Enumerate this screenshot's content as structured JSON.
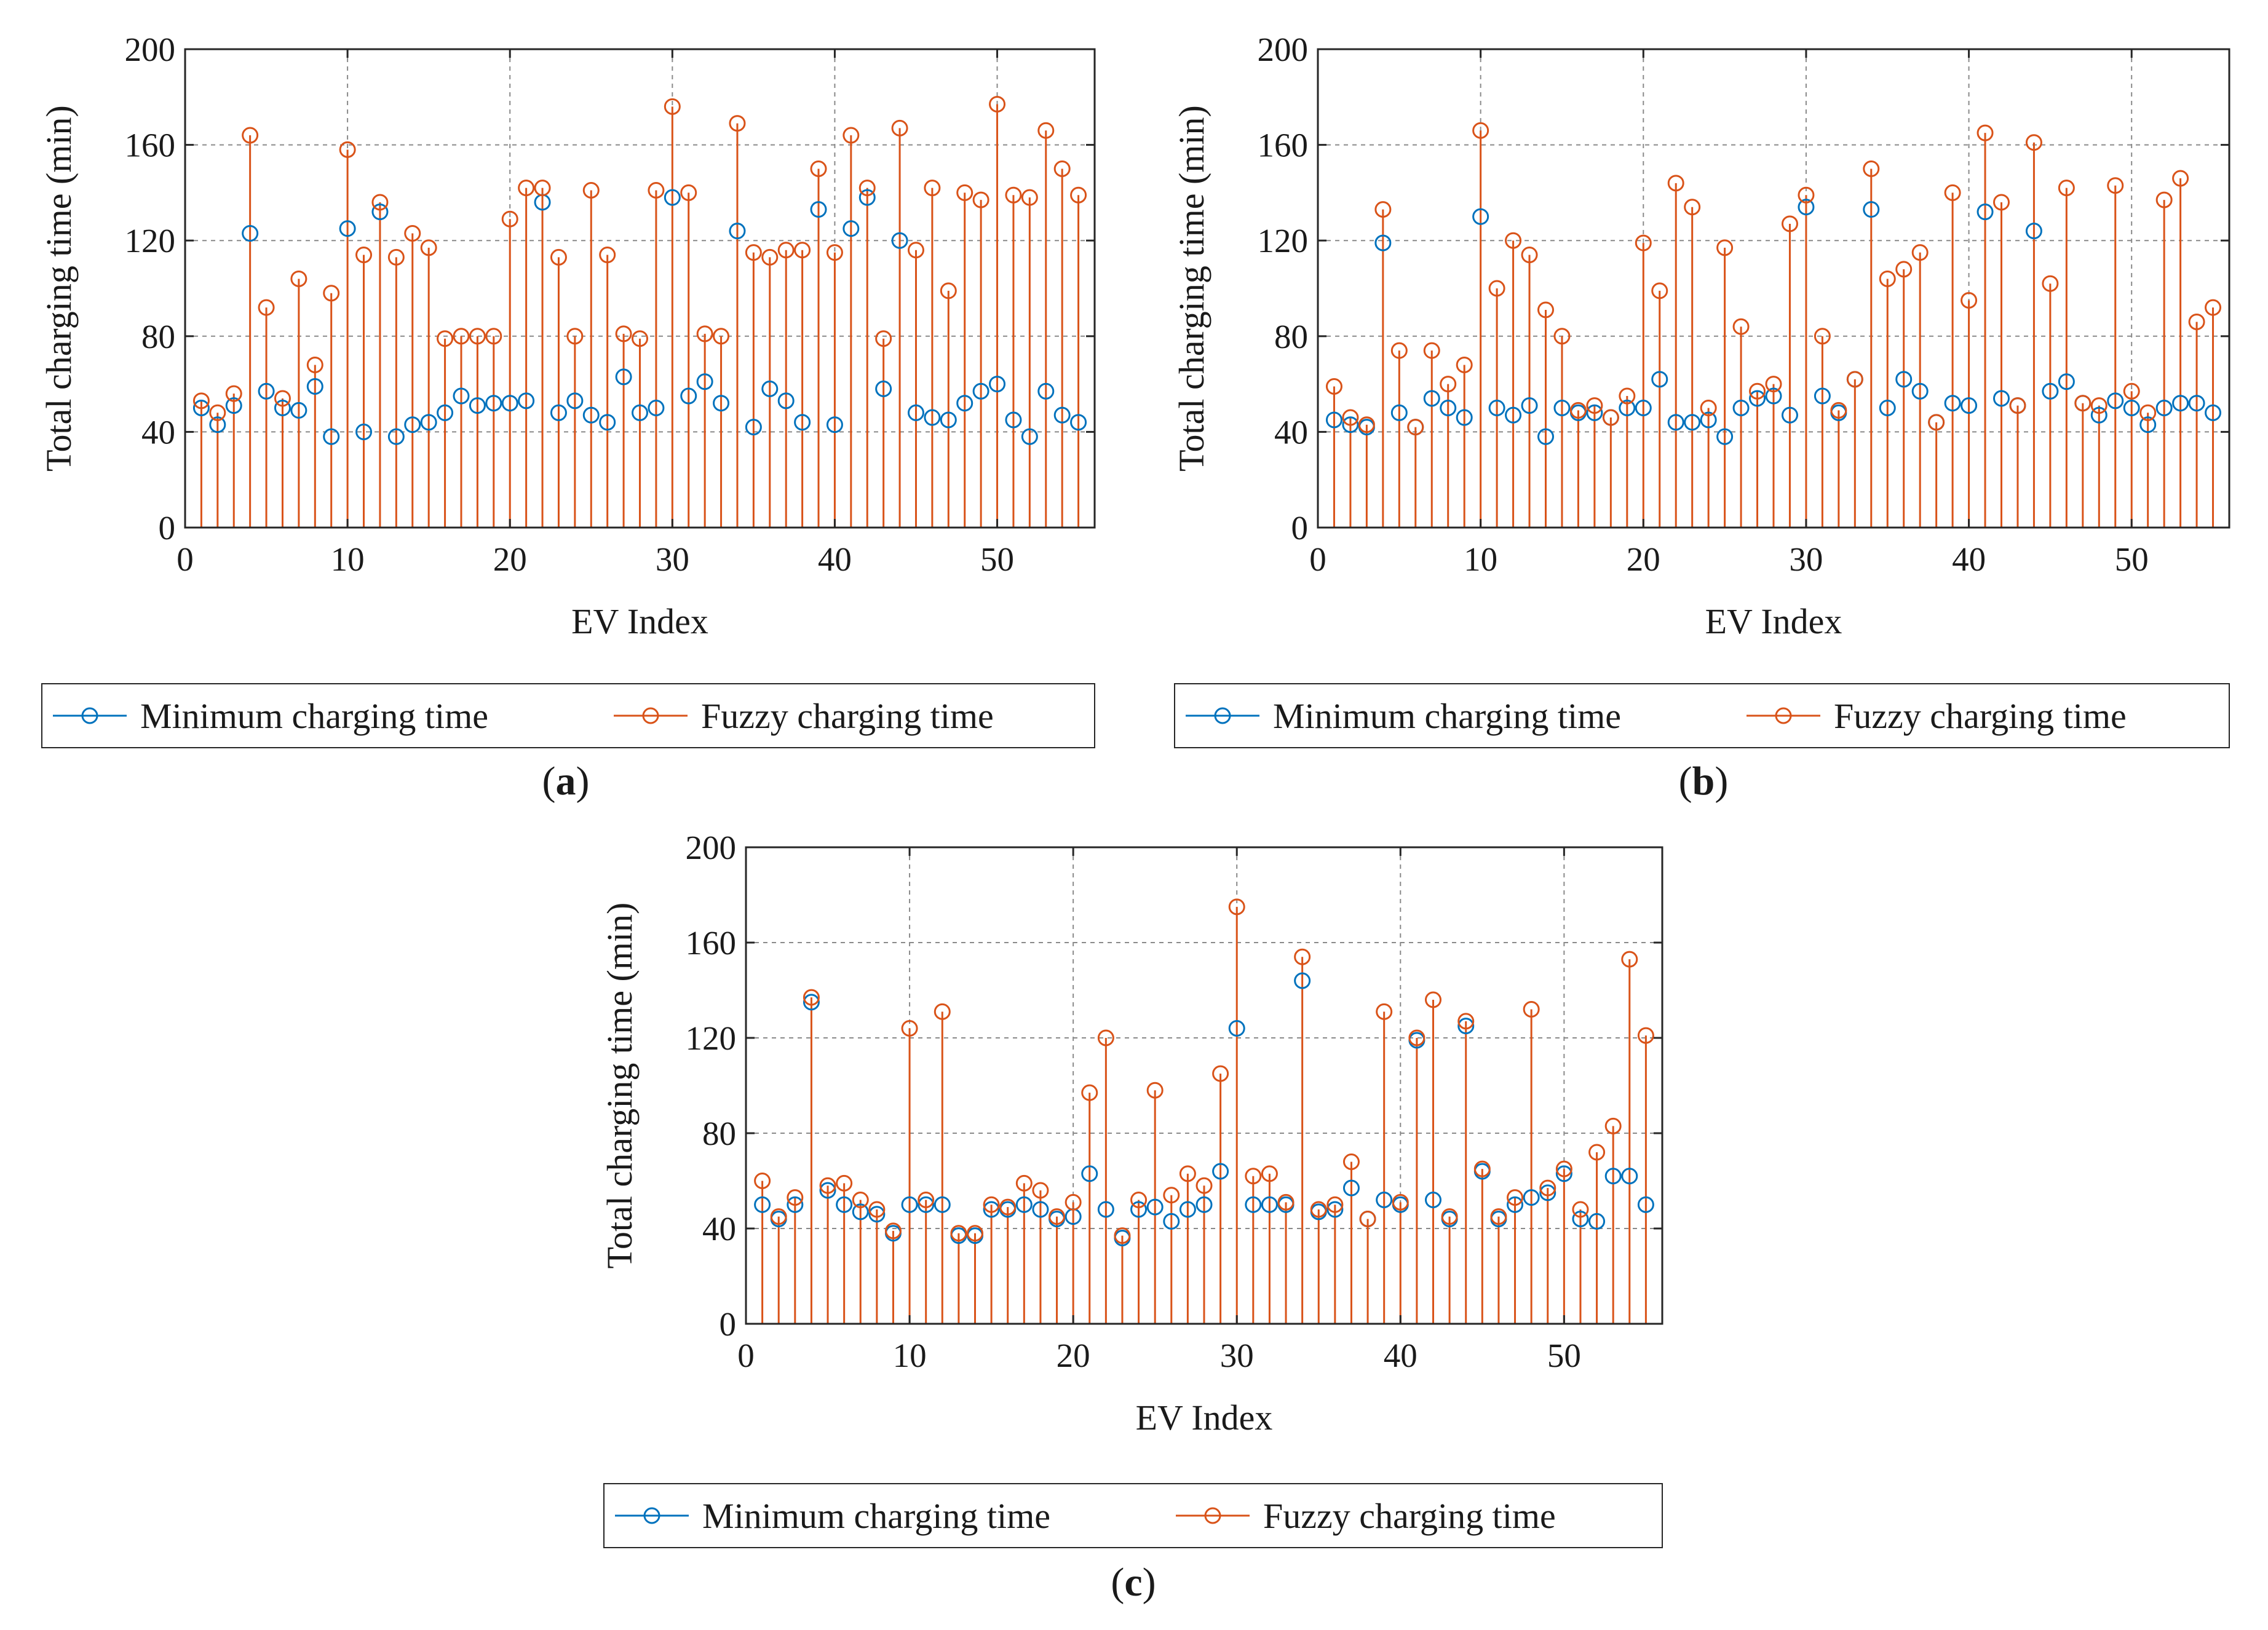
{
  "colors": {
    "minimum": "#0072BD",
    "fuzzy": "#D95319",
    "grid": "#8a8a8a",
    "axis": "#262626"
  },
  "legend": {
    "minimum_label": "Minimum charging time",
    "fuzzy_label": "Fuzzy charging time"
  },
  "chart_data": [
    {
      "type": "stem",
      "panel_label": "a",
      "title": "",
      "xlabel": "EV Index",
      "ylabel": "Total charging time (min)",
      "xlim": [
        0,
        56
      ],
      "ylim": [
        0,
        200
      ],
      "xticks": [
        0,
        10,
        20,
        30,
        40,
        50
      ],
      "yticks": [
        0,
        40,
        80,
        120,
        160,
        200
      ],
      "grid": true,
      "x": [
        1,
        2,
        3,
        4,
        5,
        6,
        7,
        8,
        9,
        10,
        11,
        12,
        13,
        14,
        15,
        16,
        17,
        18,
        19,
        20,
        21,
        22,
        23,
        24,
        25,
        26,
        27,
        28,
        29,
        30,
        31,
        32,
        33,
        34,
        35,
        36,
        37,
        38,
        39,
        40,
        41,
        42,
        43,
        44,
        45,
        46,
        47,
        48,
        49,
        50,
        51,
        52,
        53,
        54,
        55
      ],
      "series": [
        {
          "name": "Minimum charging time",
          "values": [
            50,
            43,
            51,
            123,
            57,
            50,
            49,
            59,
            38,
            125,
            40,
            132,
            38,
            43,
            44,
            48,
            55,
            51,
            52,
            52,
            53,
            136,
            48,
            53,
            47,
            44,
            63,
            48,
            50,
            138,
            55,
            61,
            52,
            124,
            42,
            58,
            53,
            44,
            133,
            43,
            125,
            138,
            58,
            120,
            48,
            46,
            45,
            52,
            57,
            60,
            45,
            38,
            57,
            47,
            44
          ]
        },
        {
          "name": "Fuzzy charging time",
          "values": [
            53,
            48,
            56,
            164,
            92,
            54,
            104,
            68,
            98,
            158,
            114,
            136,
            113,
            123,
            117,
            79,
            80,
            80,
            80,
            129,
            142,
            142,
            113,
            80,
            141,
            114,
            81,
            79,
            141,
            176,
            140,
            81,
            80,
            169,
            115,
            113,
            116,
            116,
            150,
            115,
            164,
            142,
            79,
            167,
            116,
            142,
            99,
            140,
            137,
            177,
            139,
            138,
            166,
            150,
            139
          ]
        }
      ]
    },
    {
      "type": "stem",
      "panel_label": "b",
      "title": "",
      "xlabel": "EV Index",
      "ylabel": "Total charging time (min)",
      "xlim": [
        0,
        56
      ],
      "ylim": [
        0,
        200
      ],
      "xticks": [
        0,
        10,
        20,
        30,
        40,
        50
      ],
      "yticks": [
        0,
        40,
        80,
        120,
        160,
        200
      ],
      "grid": true,
      "x": [
        1,
        2,
        3,
        4,
        5,
        6,
        7,
        8,
        9,
        10,
        11,
        12,
        13,
        14,
        15,
        16,
        17,
        18,
        19,
        20,
        21,
        22,
        23,
        24,
        25,
        26,
        27,
        28,
        29,
        30,
        31,
        32,
        33,
        34,
        35,
        36,
        37,
        38,
        39,
        40,
        41,
        42,
        43,
        44,
        45,
        46,
        47,
        48,
        49,
        50,
        51,
        52,
        53,
        54,
        55
      ],
      "series": [
        {
          "name": "Minimum charging time",
          "values": [
            45,
            43,
            42,
            119,
            48,
            42,
            54,
            50,
            46,
            130,
            50,
            47,
            51,
            38,
            50,
            48,
            48,
            46,
            50,
            50,
            62,
            44,
            44,
            45,
            38,
            50,
            54,
            55,
            47,
            134,
            55,
            48,
            62,
            133,
            50,
            62,
            57,
            44,
            52,
            51,
            132,
            54,
            51,
            124,
            57,
            61,
            52,
            47,
            53,
            50,
            43,
            50,
            52,
            52,
            48
          ]
        },
        {
          "name": "Fuzzy charging time",
          "values": [
            59,
            46,
            43,
            133,
            74,
            42,
            74,
            60,
            68,
            166,
            100,
            120,
            114,
            91,
            80,
            49,
            51,
            46,
            55,
            119,
            99,
            144,
            134,
            50,
            117,
            84,
            57,
            60,
            127,
            139,
            80,
            49,
            62,
            150,
            104,
            108,
            115,
            44,
            140,
            95,
            165,
            136,
            51,
            161,
            102,
            142,
            52,
            51,
            143,
            57,
            48,
            137,
            146,
            86,
            92
          ]
        }
      ]
    },
    {
      "type": "stem",
      "panel_label": "c",
      "title": "",
      "xlabel": "EV Index",
      "ylabel": "Total charging time (min)",
      "xlim": [
        0,
        56
      ],
      "ylim": [
        0,
        200
      ],
      "xticks": [
        0,
        10,
        20,
        30,
        40,
        50
      ],
      "yticks": [
        0,
        40,
        80,
        120,
        160,
        200
      ],
      "grid": true,
      "x": [
        1,
        2,
        3,
        4,
        5,
        6,
        7,
        8,
        9,
        10,
        11,
        12,
        13,
        14,
        15,
        16,
        17,
        18,
        19,
        20,
        21,
        22,
        23,
        24,
        25,
        26,
        27,
        28,
        29,
        30,
        31,
        32,
        33,
        34,
        35,
        36,
        37,
        38,
        39,
        40,
        41,
        42,
        43,
        44,
        45,
        46,
        47,
        48,
        49,
        50,
        51,
        52,
        53,
        54,
        55
      ],
      "series": [
        {
          "name": "Minimum charging time",
          "values": [
            50,
            44,
            50,
            135,
            56,
            50,
            47,
            46,
            38,
            50,
            50,
            50,
            37,
            37,
            48,
            48,
            50,
            48,
            44,
            45,
            63,
            48,
            36,
            48,
            49,
            43,
            48,
            50,
            64,
            124,
            50,
            50,
            50,
            144,
            47,
            48,
            57,
            44,
            52,
            50,
            119,
            52,
            44,
            125,
            64,
            44,
            50,
            53,
            55,
            63,
            44,
            43,
            62,
            62,
            50
          ]
        },
        {
          "name": "Fuzzy charging time",
          "values": [
            60,
            45,
            53,
            137,
            58,
            59,
            52,
            48,
            39,
            124,
            52,
            131,
            38,
            38,
            50,
            49,
            59,
            56,
            45,
            51,
            97,
            120,
            37,
            52,
            98,
            54,
            63,
            58,
            105,
            175,
            62,
            63,
            51,
            154,
            48,
            50,
            68,
            44,
            131,
            51,
            120,
            136,
            45,
            127,
            65,
            45,
            53,
            132,
            57,
            65,
            48,
            72,
            83,
            153,
            121
          ]
        }
      ]
    }
  ]
}
